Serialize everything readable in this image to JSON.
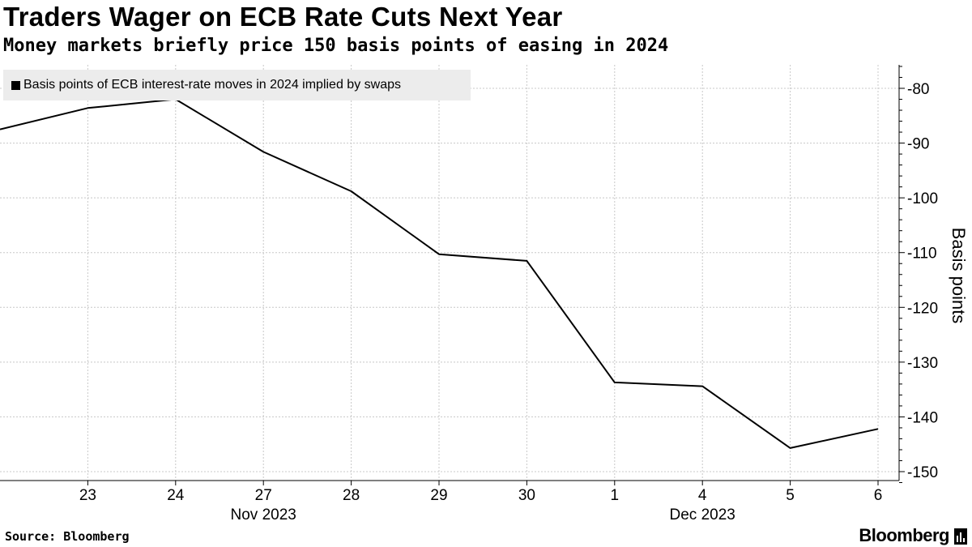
{
  "chart_data": {
    "type": "line",
    "title": "Traders Wager on ECB Rate Cuts Next Year",
    "subtitle": "Money markets briefly price 150 basis points of easing in 2024",
    "ylabel": "Basis points",
    "ylim": [
      -152,
      -76
    ],
    "y_ticks": [
      -80,
      -90,
      -100,
      -110,
      -120,
      -130,
      -140,
      -150
    ],
    "y_tick_labels": [
      "-80",
      "-90",
      "-100",
      "-110",
      "-120",
      "-130",
      "-140",
      "-150"
    ],
    "y_axis_side": "right",
    "grid": true,
    "x_tick_labels": [
      "23",
      "24",
      "27",
      "28",
      "29",
      "30",
      "1",
      "4",
      "5",
      "6"
    ],
    "x_group_labels": [
      {
        "label": "Nov 2023",
        "under": "27"
      },
      {
        "label": "Dec 2023",
        "under": "4"
      }
    ],
    "x": [
      "2023-11-22",
      "2023-11-23",
      "2023-11-24",
      "2023-11-27",
      "2023-11-28",
      "2023-11-29",
      "2023-11-30",
      "2023-12-01",
      "2023-12-04",
      "2023-12-05",
      "2023-12-06"
    ],
    "series": [
      {
        "name": "Basis points of ECB interest-rate moves in 2024 implied by swaps",
        "color": "#000000",
        "values": [
          -87.5,
          -83.6,
          -82.0,
          -91.6,
          -98.8,
          -110.3,
          -111.5,
          -133.7,
          -134.4,
          -145.7,
          -142.2
        ]
      }
    ],
    "legend_position": "top-left"
  },
  "footer": {
    "source": "Source: Bloomberg",
    "brand": "Bloomberg"
  }
}
